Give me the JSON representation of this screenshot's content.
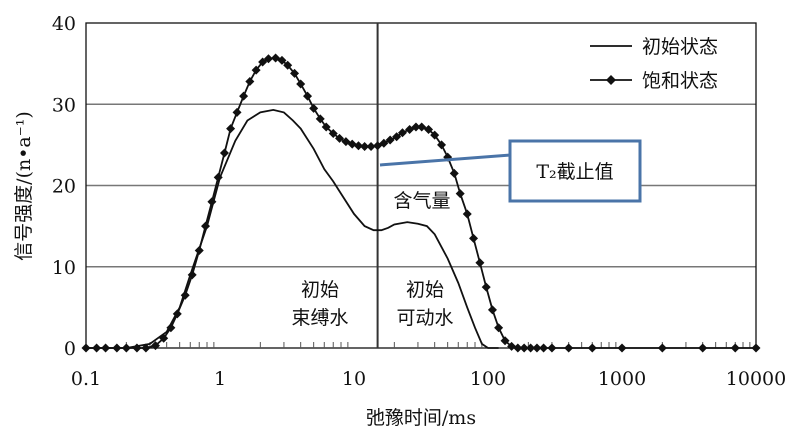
{
  "chart_data": {
    "type": "line",
    "x_scale": "log",
    "xlabel": "弛豫时间/ms",
    "ylabel": "信号强度/(n•a⁻¹)",
    "xlim": [
      0.1,
      10000
    ],
    "ylim": [
      0,
      40
    ],
    "x_ticks": [
      {
        "value": 0.1,
        "label": "0.1"
      },
      {
        "value": 1,
        "label": "1"
      },
      {
        "value": 10,
        "label": "10"
      },
      {
        "value": 100,
        "label": "100"
      },
      {
        "value": 1000,
        "label": "1000"
      },
      {
        "value": 10000,
        "label": "10000"
      }
    ],
    "y_ticks": [
      {
        "value": 0,
        "label": "0"
      },
      {
        "value": 10,
        "label": "10"
      },
      {
        "value": 20,
        "label": "20"
      },
      {
        "value": 30,
        "label": "30"
      },
      {
        "value": 40,
        "label": "40"
      }
    ],
    "grid": "horizontal",
    "legend_position": "top-right",
    "series": [
      {
        "name": "初始状态",
        "marker": "none",
        "color": "#111111",
        "x": [
          0.1,
          0.2,
          0.3,
          0.4,
          0.5,
          0.6,
          0.8,
          1.0,
          1.3,
          1.6,
          2.0,
          2.5,
          3.0,
          3.5,
          4.0,
          5.0,
          6.0,
          7.0,
          8.0,
          10,
          12,
          14,
          16,
          18,
          20,
          25,
          30,
          35,
          40,
          50,
          60,
          70,
          80,
          90,
          100,
          120
        ],
        "y": [
          0,
          0,
          0.5,
          2,
          5,
          9,
          15,
          21,
          25.5,
          28,
          29,
          29.3,
          29,
          28,
          27,
          24.5,
          22,
          20.5,
          19,
          16.5,
          15,
          14.5,
          14.5,
          14.8,
          15.2,
          15.5,
          15.3,
          15,
          14,
          11,
          8,
          5,
          2.5,
          0.5,
          0,
          0
        ]
      },
      {
        "name": "饱和状态",
        "marker": "diamond",
        "color": "#111111",
        "x": [
          0.1,
          0.12,
          0.14,
          0.17,
          0.2,
          0.24,
          0.28,
          0.33,
          0.38,
          0.43,
          0.48,
          0.55,
          0.62,
          0.7,
          0.78,
          0.87,
          0.97,
          1.08,
          1.2,
          1.34,
          1.5,
          1.67,
          1.86,
          2.08,
          2.3,
          2.6,
          2.9,
          3.2,
          3.6,
          4.0,
          4.5,
          5.0,
          5.6,
          6.2,
          7.0,
          7.8,
          8.7,
          9.7,
          10.8,
          12,
          13.4,
          15,
          16.7,
          18.6,
          20.8,
          23,
          26,
          29,
          32,
          36,
          40,
          45,
          50,
          56,
          62,
          70,
          78,
          87,
          97,
          108,
          120,
          134,
          150,
          167,
          186,
          208,
          232,
          260,
          300,
          400,
          600,
          1000,
          2000,
          4000,
          7000,
          10000
        ],
        "y": [
          0,
          0,
          0,
          0,
          0,
          0,
          0,
          0.3,
          1.2,
          2.5,
          4.2,
          6.5,
          9,
          12,
          15,
          18,
          21,
          24,
          27,
          29,
          31,
          32.8,
          34.2,
          35.2,
          35.6,
          35.7,
          35.4,
          34.8,
          33.8,
          32.5,
          31,
          29.5,
          28.2,
          27.2,
          26.4,
          25.8,
          25.4,
          25.1,
          24.9,
          24.8,
          24.8,
          24.9,
          25.2,
          25.6,
          26,
          26.5,
          26.9,
          27.2,
          27.2,
          26.9,
          26.2,
          25,
          23.5,
          21.5,
          19,
          16.5,
          13.5,
          10.5,
          7.5,
          4.7,
          2.5,
          0.9,
          0.2,
          0,
          0,
          0,
          0,
          0,
          0,
          0,
          0,
          0,
          0,
          0,
          0,
          0
        ]
      }
    ],
    "vertical_line": {
      "x": 15,
      "label": "T₂截止值"
    },
    "annotations": {
      "gas": "含气量",
      "bound_water_line1": "初始",
      "bound_water_line2": "束缚水",
      "movable_water_line1": "初始",
      "movable_water_line2": "可动水"
    },
    "callout_box_color": "#4a74a8"
  }
}
